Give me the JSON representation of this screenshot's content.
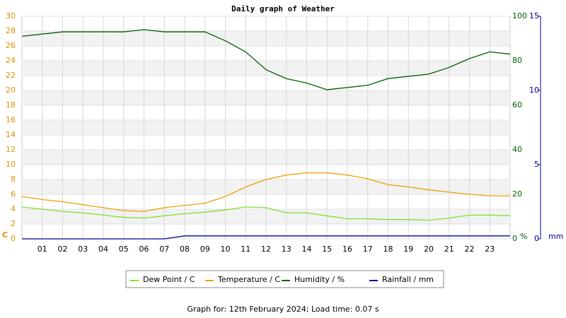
{
  "chart_data": {
    "type": "line",
    "title": "Daily graph of Weather",
    "footer": "Graph for: 12th February 2024; Load time: 0.07 s",
    "y_unit": "C",
    "y2_unit": "%",
    "y3_unit": "mm",
    "x": [
      0,
      1,
      2,
      3,
      4,
      5,
      6,
      7,
      8,
      9,
      10,
      11,
      12,
      13,
      14,
      15,
      16,
      17,
      18,
      19,
      20,
      21,
      22,
      23,
      24
    ],
    "xlim": [
      0,
      24
    ],
    "xticks": [
      {
        "value": 1,
        "label": "01"
      },
      {
        "value": 2,
        "label": "02"
      },
      {
        "value": 3,
        "label": "03"
      },
      {
        "value": 4,
        "label": "04"
      },
      {
        "value": 5,
        "label": "05"
      },
      {
        "value": 6,
        "label": "06"
      },
      {
        "value": 7,
        "label": "07"
      },
      {
        "value": 8,
        "label": "08"
      },
      {
        "value": 9,
        "label": "09"
      },
      10,
      11,
      12,
      13,
      14,
      15,
      16,
      17,
      18,
      19,
      20,
      21,
      22,
      23
    ],
    "ylim": [
      0,
      30
    ],
    "yticks": [
      0,
      2,
      4,
      6,
      8,
      10,
      12,
      14,
      16,
      18,
      20,
      22,
      24,
      26,
      28,
      30
    ],
    "y2lim": [
      0,
      100
    ],
    "y2ticks": [
      0,
      20,
      40,
      60,
      80,
      100
    ],
    "y3lim": [
      0,
      15
    ],
    "y3ticks": [
      0,
      5,
      10,
      15
    ],
    "grid": true,
    "series": [
      {
        "name": "Dew Point / C",
        "color": "#80e030",
        "axis": "y",
        "values": [
          4.3,
          4.0,
          3.7,
          3.5,
          3.2,
          2.9,
          2.8,
          3.1,
          3.4,
          3.6,
          3.9,
          4.3,
          4.2,
          3.5,
          3.5,
          3.1,
          2.7,
          2.7,
          2.6,
          2.6,
          2.5,
          2.8,
          3.2,
          3.2,
          3.1
        ]
      },
      {
        "name": "Temperature / C",
        "color": "#f0a000",
        "axis": "y",
        "values": [
          5.7,
          5.3,
          5.0,
          4.6,
          4.2,
          3.8,
          3.7,
          4.2,
          4.5,
          4.8,
          5.7,
          7.0,
          8.0,
          8.6,
          8.9,
          8.9,
          8.6,
          8.1,
          7.3,
          7.0,
          6.6,
          6.3,
          6.0,
          5.8,
          5.8
        ]
      },
      {
        "name": "Humidity / %",
        "color": "#006000",
        "axis": "y2",
        "values": [
          91,
          92,
          93,
          93,
          93,
          93,
          94,
          93,
          93,
          93,
          89,
          84,
          76,
          72,
          70,
          67,
          68,
          69,
          72,
          73,
          74,
          77,
          81,
          84,
          83
        ]
      },
      {
        "name": "Rainfall / mm",
        "color": "#000090",
        "axis": "y3",
        "values": [
          0,
          0,
          0,
          0,
          0,
          0,
          0,
          0,
          0.2,
          0.2,
          0.2,
          0.2,
          0.2,
          0.2,
          0.2,
          0.2,
          0.2,
          0.2,
          0.2,
          0.2,
          0.2,
          0.2,
          0.2,
          0.2,
          0.2
        ]
      }
    ]
  }
}
